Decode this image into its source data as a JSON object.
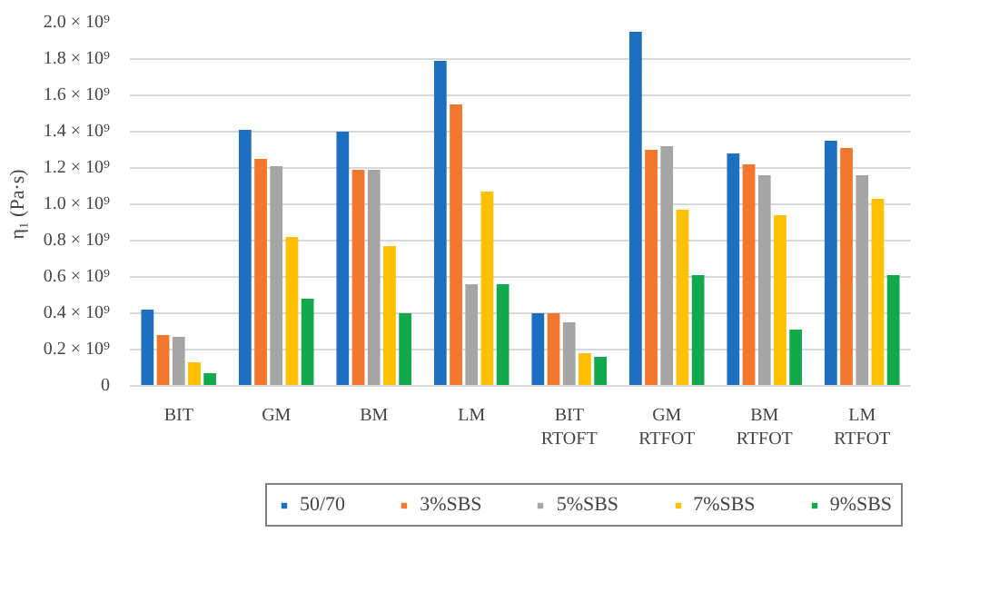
{
  "chart_data": {
    "type": "bar",
    "ylabel": "η₁ (Pa·s)",
    "categories": [
      "BIT",
      "GM",
      "BM",
      "LM",
      "BIT\nRTOFT",
      "GM\nRTFOT",
      "BM\nRTFOT",
      "LM\nRTFOT"
    ],
    "series": [
      {
        "name": "50/70",
        "color": "#1f6fc1",
        "values": [
          420000000,
          1410000000,
          1400000000,
          1790000000,
          400000000,
          1950000000,
          1280000000,
          1350000000
        ]
      },
      {
        "name": "3%SBS",
        "color": "#f4772e",
        "values": [
          280000000,
          1250000000,
          1190000000,
          1550000000,
          400000000,
          1300000000,
          1220000000,
          1310000000
        ]
      },
      {
        "name": "5%SBS",
        "color": "#a5a5a5",
        "values": [
          270000000,
          1210000000,
          1190000000,
          560000000,
          350000000,
          1320000000,
          1160000000,
          1160000000
        ]
      },
      {
        "name": "7%SBS",
        "color": "#ffc000",
        "values": [
          130000000,
          820000000,
          770000000,
          1070000000,
          180000000,
          970000000,
          940000000,
          1030000000
        ]
      },
      {
        "name": "9%SBS",
        "color": "#12a84d",
        "values": [
          70000000,
          480000000,
          400000000,
          560000000,
          160000000,
          610000000,
          310000000,
          610000000
        ]
      }
    ],
    "ylim": [
      0,
      2000000000
    ],
    "yticks": [
      {
        "value": 0,
        "label": "0"
      },
      {
        "value": 200000000,
        "label": "0.2 × 10⁹"
      },
      {
        "value": 400000000,
        "label": "0.4 × 10⁹"
      },
      {
        "value": 600000000,
        "label": "0.6 × 10⁹"
      },
      {
        "value": 800000000,
        "label": "0.8 × 10⁹"
      },
      {
        "value": 1000000000,
        "label": "1.0 × 10⁹"
      },
      {
        "value": 1200000000,
        "label": "1.2 × 10⁹"
      },
      {
        "value": 1400000000,
        "label": "1.4 × 10⁹"
      },
      {
        "value": 1600000000,
        "label": "1.6 × 10⁹"
      },
      {
        "value": 1800000000,
        "label": "1.8 × 10⁹"
      },
      {
        "value": 2000000000,
        "label": "2.0 × 10⁹"
      }
    ],
    "grid": "y",
    "legend": "bottom"
  }
}
